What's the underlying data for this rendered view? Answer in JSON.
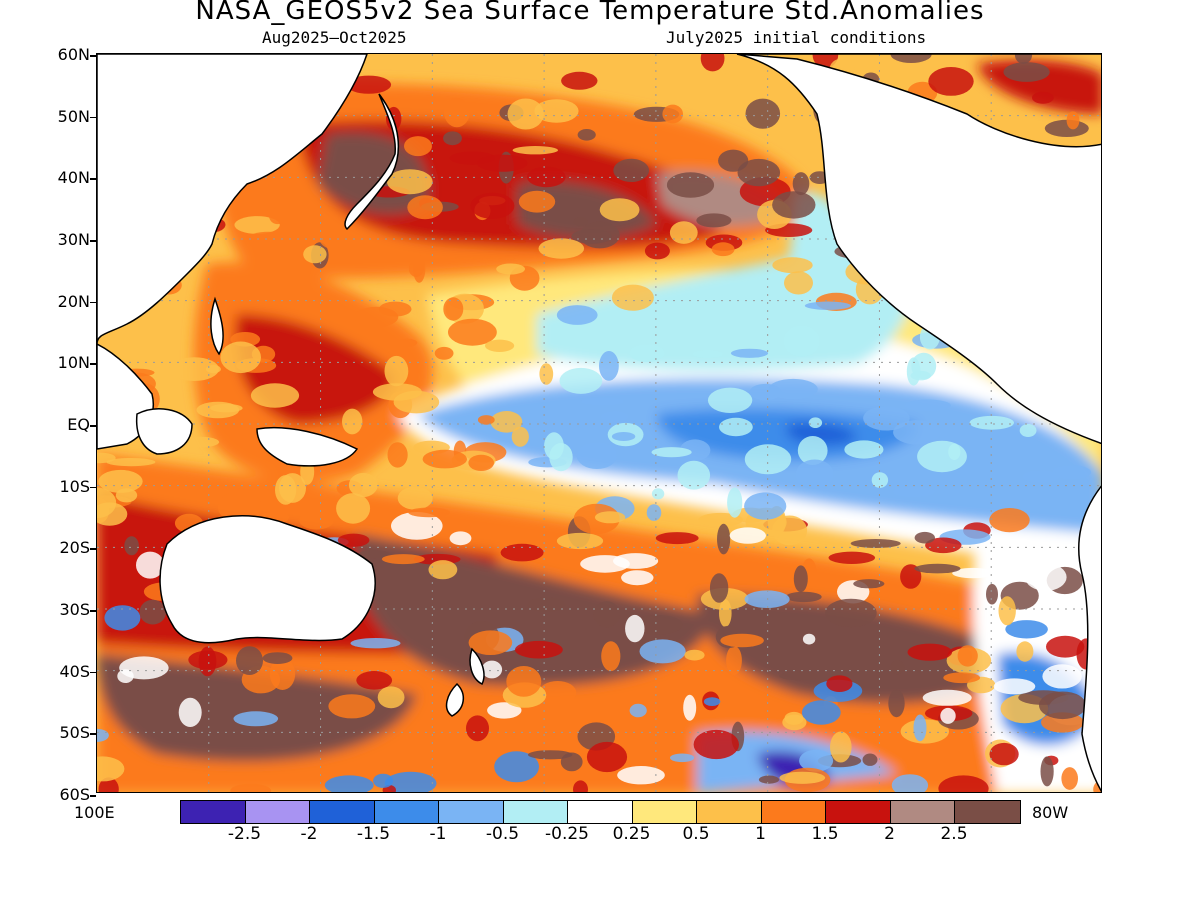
{
  "title": "NASA_GEOS5v2 Sea Surface Temperature Std.Anomalies",
  "subtitle_period": "Aug2025—Oct2025",
  "subtitle_init": "July2025 initial conditions",
  "lat_labels": [
    "60N",
    "50N",
    "40N",
    "30N",
    "20N",
    "10N",
    "EQ",
    "10S",
    "20S",
    "30S",
    "40S",
    "50S",
    "60S"
  ],
  "lon_left": "100E",
  "lon_right": "80W",
  "colorbar": {
    "colors": [
      "#3d22b2",
      "#a893f2",
      "#1f61d8",
      "#3d8cea",
      "#7ab4f4",
      "#b2eef4",
      "#ffffff",
      "#ffe87c",
      "#fdc04a",
      "#fc7a1c",
      "#c8120e",
      "#b08a82",
      "#7a4e46"
    ],
    "labels": [
      "-2.5",
      "-2",
      "-1.5",
      "-1",
      "-0.5",
      "-0.25",
      "0.25",
      "0.5",
      "1",
      "1.5",
      "2",
      "2.5"
    ]
  },
  "map_colors": {
    "land": "#ffffff",
    "coast": "#000000",
    "grid": "#9a9a9a"
  }
}
